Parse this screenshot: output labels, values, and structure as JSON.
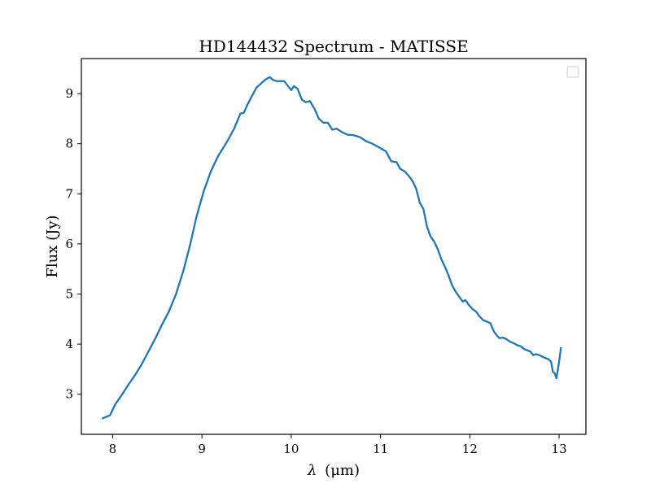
{
  "chart_data": {
    "type": "line",
    "title": "HD144432 Spectrum - MATISSE",
    "xlabel_symbol": "λ",
    "xlabel_unit": "(μm)",
    "ylabel": "Flux (Jy)",
    "xlim": [
      7.65,
      13.3
    ],
    "ylim": [
      2.2,
      9.7
    ],
    "xticks": [
      8,
      9,
      10,
      11,
      12,
      13
    ],
    "yticks": [
      3,
      4,
      5,
      6,
      7,
      8,
      9
    ],
    "grid": false,
    "legend": {
      "placement": "top-right",
      "entries": []
    },
    "series": [
      {
        "color": "#1f77b4",
        "x": [
          7.89,
          7.97,
          8.03,
          8.1,
          8.18,
          8.25,
          8.32,
          8.4,
          8.48,
          8.55,
          8.63,
          8.71,
          8.79,
          8.87,
          8.94,
          9.02,
          9.1,
          9.18,
          9.25,
          9.3,
          9.36,
          9.43,
          9.47,
          9.51,
          9.56,
          9.61,
          9.66,
          9.71,
          9.76,
          9.8,
          9.84,
          9.88,
          9.92,
          10.0,
          10.03,
          10.07,
          10.12,
          10.16,
          10.21,
          10.26,
          10.31,
          10.36,
          10.41,
          10.46,
          10.51,
          10.57,
          10.63,
          10.7,
          10.77,
          10.84,
          10.91,
          10.99,
          11.06,
          11.12,
          11.18,
          11.22,
          11.27,
          11.32,
          11.36,
          11.4,
          11.44,
          11.48,
          11.52,
          11.56,
          11.6,
          11.64,
          11.68,
          11.72,
          11.76,
          11.8,
          11.84,
          11.88,
          11.92,
          11.95,
          11.99,
          12.03,
          12.07,
          12.11,
          12.15,
          12.19,
          12.23,
          12.27,
          12.3,
          12.33,
          12.37,
          12.41,
          12.45,
          12.49,
          12.53,
          12.57,
          12.61,
          12.64,
          12.68,
          12.71,
          12.74,
          12.78,
          12.81,
          12.85,
          12.88,
          12.91,
          12.93,
          12.95,
          12.97,
          13.0,
          13.02
        ],
        "y": [
          2.52,
          2.58,
          2.8,
          2.98,
          3.2,
          3.38,
          3.58,
          3.85,
          4.12,
          4.38,
          4.65,
          5.0,
          5.45,
          6.0,
          6.55,
          7.05,
          7.45,
          7.75,
          7.95,
          8.1,
          8.3,
          8.6,
          8.62,
          8.78,
          8.95,
          9.12,
          9.2,
          9.28,
          9.33,
          9.27,
          9.25,
          9.25,
          9.25,
          9.07,
          9.15,
          9.1,
          8.88,
          8.83,
          8.85,
          8.7,
          8.5,
          8.42,
          8.42,
          8.28,
          8.3,
          8.23,
          8.18,
          8.17,
          8.13,
          8.05,
          8.0,
          7.92,
          7.85,
          7.65,
          7.63,
          7.5,
          7.45,
          7.35,
          7.25,
          7.1,
          6.82,
          6.7,
          6.35,
          6.15,
          6.05,
          5.9,
          5.7,
          5.55,
          5.38,
          5.18,
          5.05,
          4.95,
          4.85,
          4.88,
          4.78,
          4.7,
          4.65,
          4.55,
          4.48,
          4.45,
          4.42,
          4.25,
          4.18,
          4.12,
          4.13,
          4.1,
          4.05,
          4.02,
          3.98,
          3.96,
          3.9,
          3.88,
          3.85,
          3.78,
          3.8,
          3.78,
          3.75,
          3.72,
          3.7,
          3.65,
          3.45,
          3.42,
          3.32,
          3.65,
          3.92
        ]
      }
    ]
  }
}
